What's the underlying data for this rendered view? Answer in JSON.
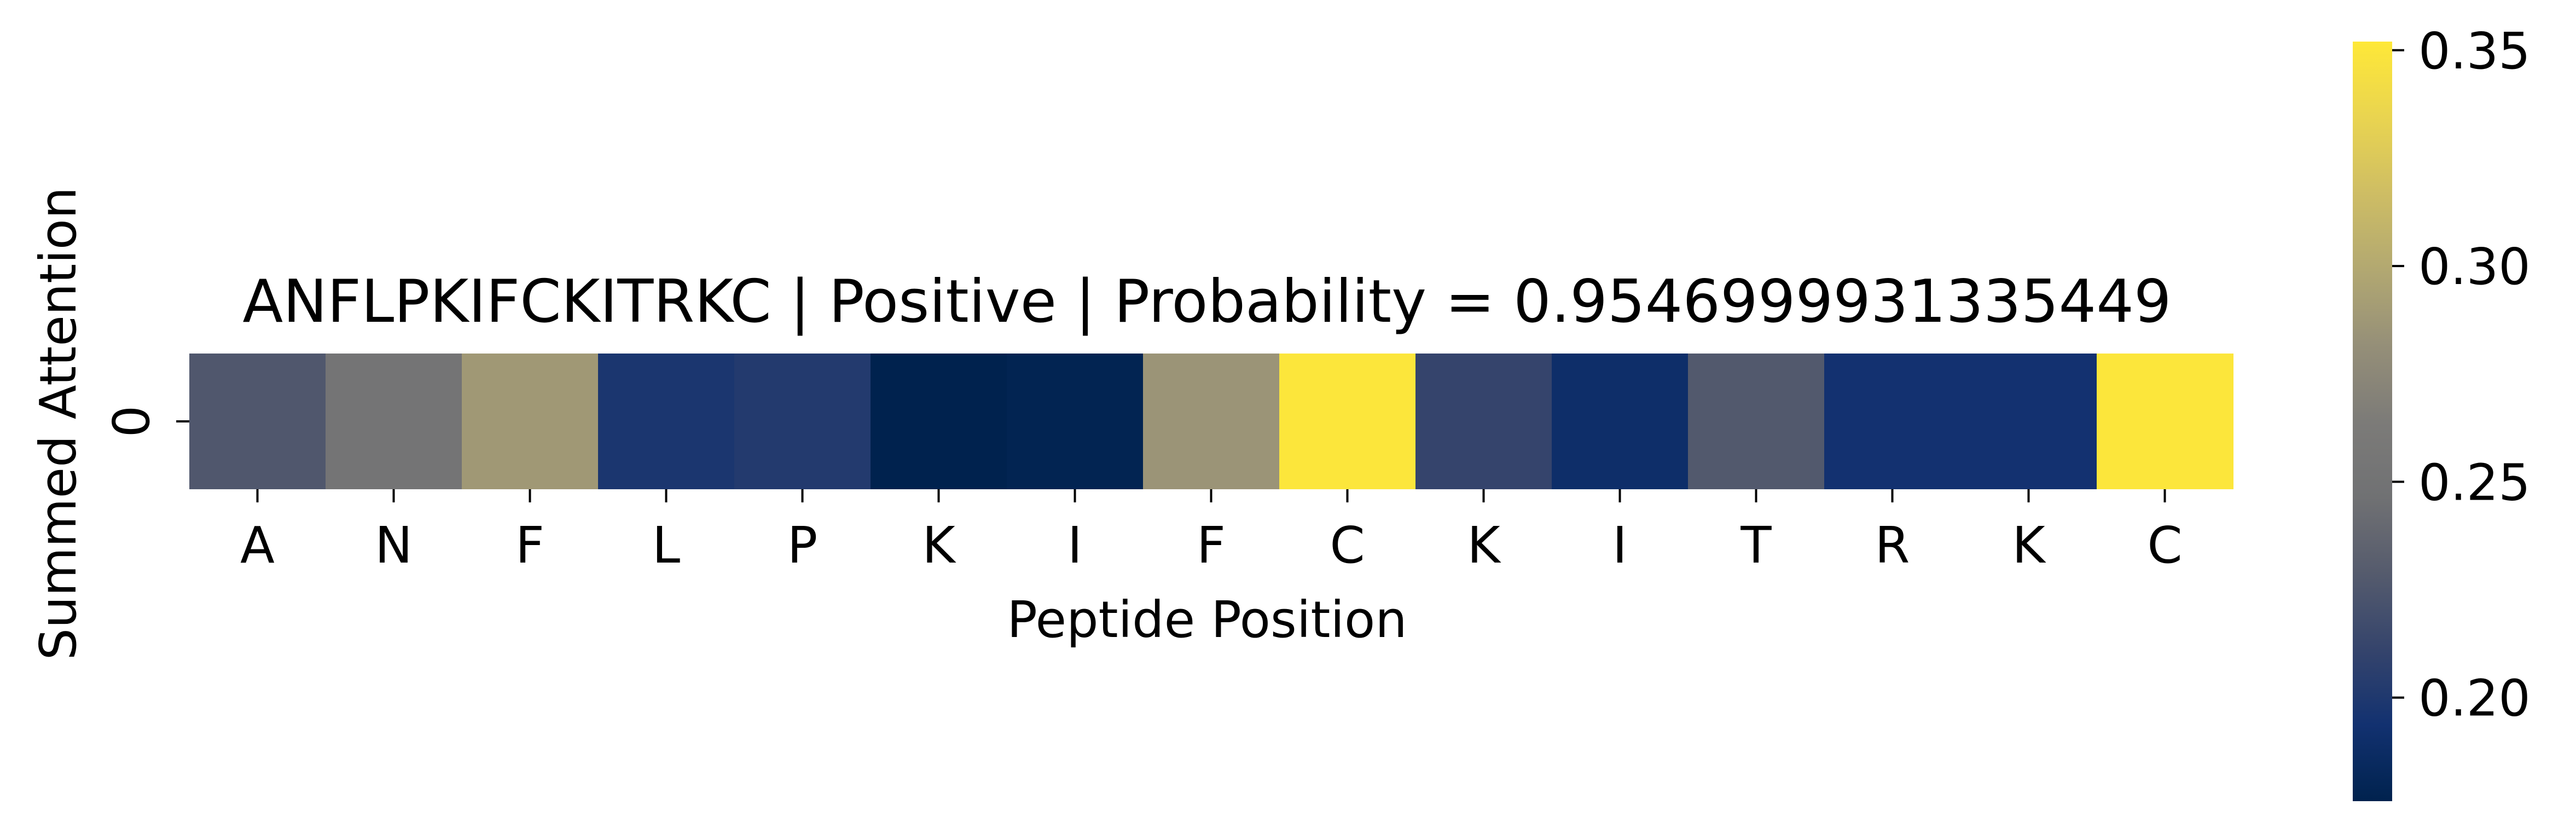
{
  "chart_data": {
    "type": "heatmap",
    "title": "ANFLPKIFCKITRKC | Positive | Probability = 0.9546999931335449",
    "xlabel": "Peptide Position",
    "ylabel": "Summed Attention",
    "x_categories": [
      "A",
      "N",
      "F",
      "L",
      "P",
      "K",
      "I",
      "F",
      "C",
      "K",
      "I",
      "T",
      "R",
      "K",
      "C"
    ],
    "y_categories": [
      "0"
    ],
    "values": [
      [
        0.226,
        0.252,
        0.288,
        0.198,
        0.202,
        0.176,
        0.178,
        0.285,
        0.35,
        0.211,
        0.19,
        0.227,
        0.194,
        0.194,
        0.35
      ]
    ],
    "colorbar": {
      "colormap": "cividis",
      "vmin": 0.176,
      "vmax": 0.352,
      "ticks": [
        0.2,
        0.25,
        0.3,
        0.35
      ],
      "tick_labels": [
        "0.20",
        "0.25",
        "0.30",
        "0.35"
      ]
    },
    "colors": {
      "cividis_low": "#00224e",
      "cividis_mid": "#7c7b78",
      "cividis_high": "#fee838"
    }
  }
}
